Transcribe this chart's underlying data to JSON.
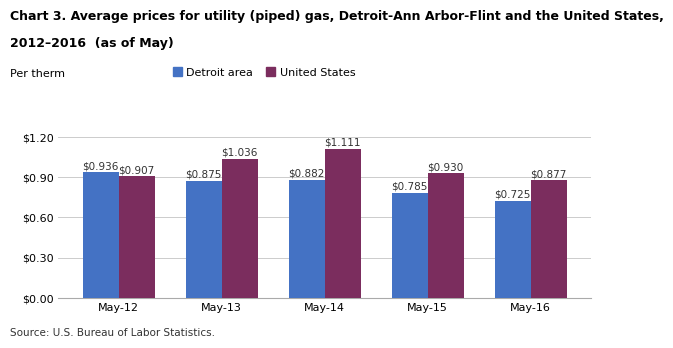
{
  "title_line1": "Chart 3. Average prices for utility (piped) gas, Detroit-Ann Arbor-Flint and the United States,",
  "title_line2": "2012–2016  (as of May)",
  "ylabel": "Per therm",
  "source": "Source: U.S. Bureau of Labor Statistics.",
  "categories": [
    "May-12",
    "May-13",
    "May-14",
    "May-15",
    "May-16"
  ],
  "detroit_values": [
    0.936,
    0.875,
    0.882,
    0.785,
    0.725
  ],
  "us_values": [
    0.907,
    1.036,
    1.111,
    0.93,
    0.877
  ],
  "detroit_color": "#4472C4",
  "us_color": "#7B2D5E",
  "ylim": [
    0,
    1.3
  ],
  "yticks": [
    0.0,
    0.3,
    0.6,
    0.9,
    1.2
  ],
  "legend_detroit": "Detroit area",
  "legend_us": "United States",
  "bar_width": 0.35,
  "title_fontsize": 9.0,
  "label_fontsize": 8.0,
  "tick_fontsize": 8.0,
  "source_fontsize": 7.5,
  "value_label_fontsize": 7.5
}
